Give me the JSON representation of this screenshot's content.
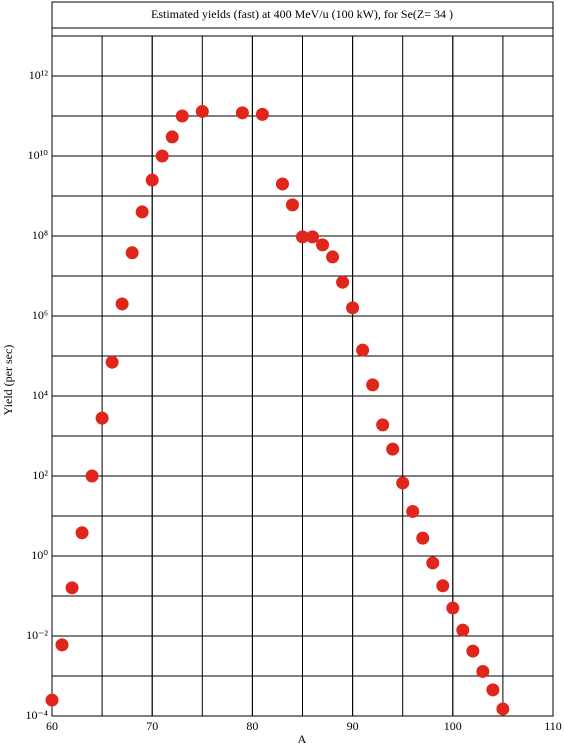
{
  "chart_data": {
    "type": "scatter",
    "title": "Estimated yields (fast) at 400 MeV/u (100 kW), for Se(Z= 34 )",
    "x_label": "A",
    "y_label": "Yield (per sec)",
    "log_y": true,
    "grid": true,
    "color": "#e0261a",
    "xlim": [
      60,
      110
    ],
    "xticks": [
      60,
      70,
      80,
      90,
      100,
      110
    ],
    "xgrid": [
      60,
      65,
      70,
      75,
      80,
      85,
      90,
      95,
      100,
      105,
      110
    ],
    "ylim": [
      0.0001,
      10000000000000.0
    ],
    "yticks": [
      {
        "value": 0.0001,
        "label": "10⁻⁴"
      },
      {
        "value": 0.01,
        "label": "10⁻²"
      },
      {
        "value": 1,
        "label": "10⁰"
      },
      {
        "value": 100,
        "label": "10²"
      },
      {
        "value": 10000,
        "label": "10⁴"
      },
      {
        "value": 1000000,
        "label": "10⁶"
      },
      {
        "value": 100000000,
        "label": "10⁸"
      },
      {
        "value": 10000000000,
        "label": "10¹⁰"
      },
      {
        "value": 1000000000000,
        "label": "10¹²"
      }
    ],
    "ygrid": [
      0.001,
      0.1,
      10,
      1000,
      100000,
      10000000,
      1000000000,
      100000000000,
      10000000000000.0
    ],
    "x": [
      60,
      61,
      62,
      63,
      64,
      65,
      66,
      67,
      68,
      69,
      70,
      71,
      72,
      73,
      75,
      79,
      81,
      83,
      84,
      85,
      86,
      87,
      88,
      89,
      90,
      91,
      92,
      93,
      94,
      95,
      96,
      97,
      98,
      99,
      100,
      101,
      102,
      103,
      104,
      105
    ],
    "values": [
      0.00025,
      0.006,
      0.16,
      3.8,
      100,
      2800,
      70000,
      2000000,
      38000000,
      400000000,
      2500000000,
      10000000000,
      30000000000,
      100000000000,
      130000000000,
      120000000000,
      110000000000,
      2000000000,
      600000000,
      95000000,
      95000000,
      60000000,
      30000000,
      7000000,
      1600000,
      140000,
      19000,
      1900,
      470,
      67,
      13,
      2.8,
      0.67,
      0.18,
      0.05,
      0.014,
      0.0042,
      0.0013,
      0.00045,
      0.00015
    ]
  }
}
